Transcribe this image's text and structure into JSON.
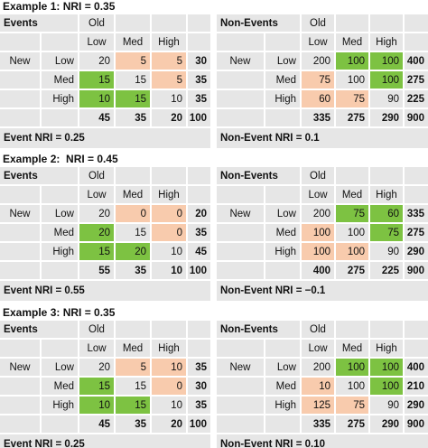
{
  "examples": [
    {
      "title": "Example 1: NRI = 0.35",
      "tables": [
        {
          "label": "Events",
          "col_header": "Old",
          "row_header": "New",
          "columns": [
            "Low",
            "Med",
            "High"
          ],
          "rows": [
            {
              "label": "Low",
              "cells": [
                20,
                5,
                5
              ],
              "total": 30
            },
            {
              "label": "Med",
              "cells": [
                15,
                15,
                5
              ],
              "total": 35
            },
            {
              "label": "High",
              "cells": [
                10,
                15,
                10
              ],
              "total": 35
            }
          ],
          "cell_colors": [
            [
              null,
              "#f8cbad",
              "#f8cbad"
            ],
            [
              "#7dc242",
              null,
              "#f8cbad"
            ],
            [
              "#7dc242",
              "#7dc242",
              null
            ]
          ],
          "totals": [
            45,
            35,
            20,
            100
          ],
          "footer": "Event NRI = 0.25"
        },
        {
          "label": "Non-Events",
          "col_header": "Old",
          "row_header": "New",
          "columns": [
            "Low",
            "Med",
            "High"
          ],
          "rows": [
            {
              "label": "Low",
              "cells": [
                200,
                100,
                100
              ],
              "total": 400
            },
            {
              "label": "Med",
              "cells": [
                75,
                100,
                100
              ],
              "total": 275
            },
            {
              "label": "High",
              "cells": [
                60,
                75,
                90
              ],
              "total": 225
            }
          ],
          "cell_colors": [
            [
              null,
              "#7dc242",
              "#7dc242"
            ],
            [
              "#f8cbad",
              null,
              "#7dc242"
            ],
            [
              "#f8cbad",
              "#f8cbad",
              null
            ]
          ],
          "totals": [
            335,
            275,
            290,
            900
          ],
          "footer": "Non-Event NRI = 0.1"
        }
      ]
    },
    {
      "title": "Example 2:  NRI = 0.45",
      "tables": [
        {
          "label": "Events",
          "col_header": "Old",
          "row_header": "New",
          "columns": [
            "Low",
            "Med",
            "High"
          ],
          "rows": [
            {
              "label": "Low",
              "cells": [
                20,
                0,
                0
              ],
              "total": 20
            },
            {
              "label": "Med",
              "cells": [
                20,
                15,
                0
              ],
              "total": 35
            },
            {
              "label": "High",
              "cells": [
                15,
                20,
                10
              ],
              "total": 45
            }
          ],
          "cell_colors": [
            [
              null,
              "#f8cbad",
              "#f8cbad"
            ],
            [
              "#7dc242",
              null,
              "#f8cbad"
            ],
            [
              "#7dc242",
              "#7dc242",
              null
            ]
          ],
          "totals": [
            55,
            35,
            10,
            100
          ],
          "footer": "Event NRI = 0.55"
        },
        {
          "label": "Non-Events",
          "col_header": "Old",
          "row_header": "New",
          "columns": [
            "Low",
            "Med",
            "High"
          ],
          "rows": [
            {
              "label": "Low",
              "cells": [
                200,
                75,
                60
              ],
              "total": 335
            },
            {
              "label": "Med",
              "cells": [
                100,
                100,
                75
              ],
              "total": 275
            },
            {
              "label": "High",
              "cells": [
                100,
                100,
                90
              ],
              "total": 290
            }
          ],
          "cell_colors": [
            [
              null,
              "#7dc242",
              "#7dc242"
            ],
            [
              "#f8cbad",
              null,
              "#7dc242"
            ],
            [
              "#f8cbad",
              "#f8cbad",
              null
            ]
          ],
          "totals": [
            400,
            275,
            225,
            900
          ],
          "footer": "Non-Event NRI = −0.1"
        }
      ]
    },
    {
      "title": "Example 3: NRI = 0.35",
      "tables": [
        {
          "label": "Events",
          "col_header": "Old",
          "row_header": "New",
          "columns": [
            "Low",
            "Med",
            "High"
          ],
          "rows": [
            {
              "label": "Low",
              "cells": [
                20,
                5,
                10
              ],
              "total": 35
            },
            {
              "label": "Med",
              "cells": [
                15,
                15,
                0
              ],
              "total": 30
            },
            {
              "label": "High",
              "cells": [
                10,
                15,
                10
              ],
              "total": 35
            }
          ],
          "cell_colors": [
            [
              null,
              "#f8cbad",
              "#f8cbad"
            ],
            [
              "#7dc242",
              null,
              "#f8cbad"
            ],
            [
              "#7dc242",
              "#7dc242",
              null
            ]
          ],
          "totals": [
            45,
            35,
            20,
            100
          ],
          "footer": "Event NRI = 0.25"
        },
        {
          "label": "Non-Events",
          "col_header": "Old",
          "row_header": "New",
          "columns": [
            "Low",
            "Med",
            "High"
          ],
          "rows": [
            {
              "label": "Low",
              "cells": [
                200,
                100,
                100
              ],
              "total": 400
            },
            {
              "label": "Med",
              "cells": [
                10,
                100,
                100
              ],
              "total": 210
            },
            {
              "label": "High",
              "cells": [
                125,
                75,
                90
              ],
              "total": 290
            }
          ],
          "cell_colors": [
            [
              null,
              "#7dc242",
              "#7dc242"
            ],
            [
              "#f8cbad",
              null,
              "#7dc242"
            ],
            [
              "#f8cbad",
              "#f8cbad",
              null
            ]
          ],
          "totals": [
            335,
            275,
            290,
            900
          ],
          "footer": "Non-Event NRI = 0.10"
        }
      ]
    }
  ]
}
